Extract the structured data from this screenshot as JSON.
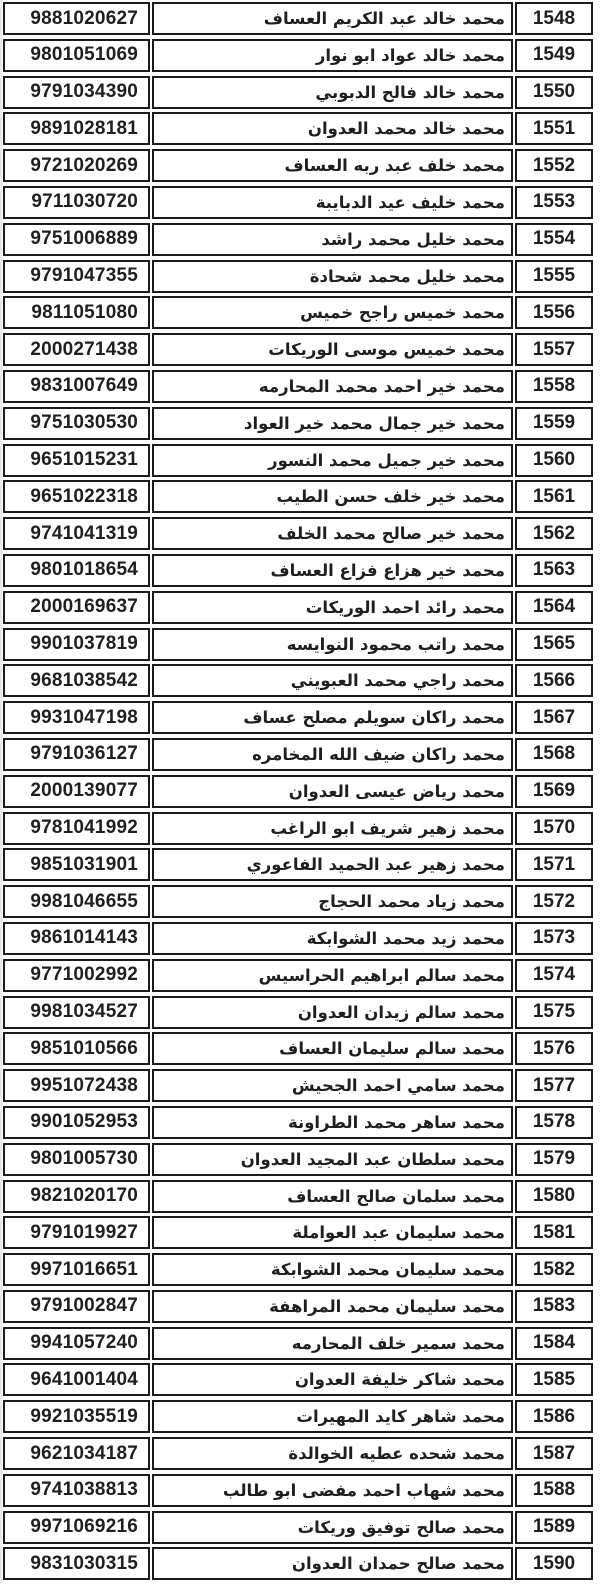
{
  "document": {
    "kind": "scanned-roster-table",
    "language": "ar",
    "colors": {
      "border": "#1b1b1b",
      "text": "#1f1f1f",
      "background": "#ffffff"
    },
    "columns": [
      "national_id",
      "name",
      "serial"
    ]
  },
  "rows": [
    {
      "serial": "1548",
      "name": "محمد خالد عبد الكريم العساف",
      "national_id": "9881020627"
    },
    {
      "serial": "1549",
      "name": "محمد خالد عواد ابو نوار",
      "national_id": "9801051069"
    },
    {
      "serial": "1550",
      "name": "محمد خالد فالح الدبوبي",
      "national_id": "9791034390"
    },
    {
      "serial": "1551",
      "name": "محمد خالد محمد العدوان",
      "national_id": "9891028181"
    },
    {
      "serial": "1552",
      "name": "محمد خلف عبد ربه العساف",
      "national_id": "9721020269"
    },
    {
      "serial": "1553",
      "name": "محمد خليف عيد الدبايبة",
      "national_id": "9711030720"
    },
    {
      "serial": "1554",
      "name": "محمد خليل محمد راشد",
      "national_id": "9751006889"
    },
    {
      "serial": "1555",
      "name": "محمد خليل محمد شحادة",
      "national_id": "9791047355"
    },
    {
      "serial": "1556",
      "name": "محمد خميس راجح خميس",
      "national_id": "9811051080"
    },
    {
      "serial": "1557",
      "name": "محمد خميس موسى الوريكات",
      "national_id": "2000271438"
    },
    {
      "serial": "1558",
      "name": "محمد خير احمد محمد المحارمه",
      "national_id": "9831007649"
    },
    {
      "serial": "1559",
      "name": "محمد خير جمال محمد خير العواد",
      "national_id": "9751030530"
    },
    {
      "serial": "1560",
      "name": "محمد خير جميل محمد النسور",
      "national_id": "9651015231"
    },
    {
      "serial": "1561",
      "name": "محمد خير خلف حسن الطيب",
      "national_id": "9651022318"
    },
    {
      "serial": "1562",
      "name": "محمد خير صالح محمد الخلف",
      "national_id": "9741041319"
    },
    {
      "serial": "1563",
      "name": "محمد خير هزاع فزاع العساف",
      "national_id": "9801018654"
    },
    {
      "serial": "1564",
      "name": "محمد رائد احمد الوريكات",
      "national_id": "2000169637"
    },
    {
      "serial": "1565",
      "name": "محمد راتب محمود النوايسه",
      "national_id": "9901037819"
    },
    {
      "serial": "1566",
      "name": "محمد راجي محمد العبويني",
      "national_id": "9681038542"
    },
    {
      "serial": "1567",
      "name": "محمد راكان سويلم مصلح عساف",
      "national_id": "9931047198"
    },
    {
      "serial": "1568",
      "name": "محمد راكان ضيف الله المخامره",
      "national_id": "9791036127"
    },
    {
      "serial": "1569",
      "name": "محمد رياض عيسى العدوان",
      "national_id": "2000139077"
    },
    {
      "serial": "1570",
      "name": "محمد زهير شريف ابو الراغب",
      "national_id": "9781041992"
    },
    {
      "serial": "1571",
      "name": "محمد زهير عبد الحميد الفاعوري",
      "national_id": "9851031901"
    },
    {
      "serial": "1572",
      "name": "محمد زياد محمد الحجاج",
      "national_id": "9981046655"
    },
    {
      "serial": "1573",
      "name": "محمد زيد محمد الشوابكة",
      "national_id": "9861014143"
    },
    {
      "serial": "1574",
      "name": "محمد سالم ابراهيم الحراسيس",
      "national_id": "9771002992"
    },
    {
      "serial": "1575",
      "name": "محمد سالم زيدان العدوان",
      "national_id": "9981034527"
    },
    {
      "serial": "1576",
      "name": "محمد سالم سليمان العساف",
      "national_id": "9851010566"
    },
    {
      "serial": "1577",
      "name": "محمد سامي احمد الجحيش",
      "national_id": "9951072438"
    },
    {
      "serial": "1578",
      "name": "محمد ساهر محمد الطراونة",
      "national_id": "9901052953"
    },
    {
      "serial": "1579",
      "name": "محمد سلطان عبد المجيد العدوان",
      "national_id": "9801005730"
    },
    {
      "serial": "1580",
      "name": "محمد سلمان صالح العساف",
      "national_id": "9821020170"
    },
    {
      "serial": "1581",
      "name": "محمد سليمان عبد العواملة",
      "national_id": "9791019927"
    },
    {
      "serial": "1582",
      "name": "محمد سليمان محمد الشوابكة",
      "national_id": "9971016651"
    },
    {
      "serial": "1583",
      "name": "محمد سليمان محمد المراهفة",
      "national_id": "9791002847"
    },
    {
      "serial": "1584",
      "name": "محمد سمير خلف المحارمه",
      "national_id": "9941057240"
    },
    {
      "serial": "1585",
      "name": "محمد شاكر خليفة العدوان",
      "national_id": "9641001404"
    },
    {
      "serial": "1586",
      "name": "محمد شاهر كايد المهيرات",
      "national_id": "9921035519"
    },
    {
      "serial": "1587",
      "name": "محمد شحده عطيه الخوالدة",
      "national_id": "9621034187"
    },
    {
      "serial": "1588",
      "name": "محمد شهاب احمد مفضى ابو طالب",
      "national_id": "9741038813"
    },
    {
      "serial": "1589",
      "name": "محمد صالح توفيق وريكات",
      "national_id": "9971069216"
    },
    {
      "serial": "1590",
      "name": "محمد صالح حمدان العدوان",
      "national_id": "9831030315"
    }
  ]
}
